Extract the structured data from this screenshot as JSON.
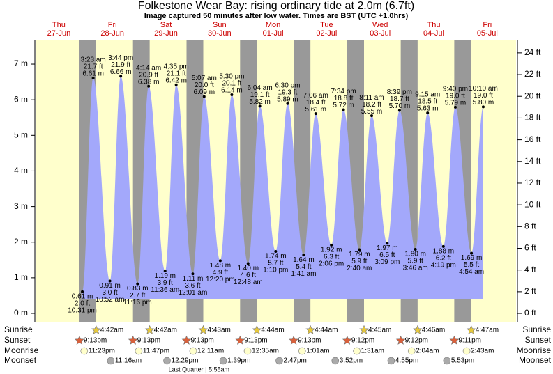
{
  "chart_data": {
    "type": "tide",
    "title": "Folkestone Wear Bay: rising  ordinary tide at 2.0m (6.7ft)",
    "subtitle": "Image captured 50 minutes after low water. Times are BST (UTC +1.0hrs)",
    "ylim": [
      -0.254,
      7.685
    ],
    "yticks": [
      {
        "value": 0,
        "label": "0 m"
      },
      {
        "value": 1,
        "label": "1 m"
      },
      {
        "value": 2,
        "label": "2 m"
      },
      {
        "value": 3,
        "label": "3 m"
      },
      {
        "value": 4,
        "label": "4 m"
      },
      {
        "value": 5,
        "label": "5 m"
      },
      {
        "value": 6,
        "label": "6 m"
      },
      {
        "value": 7,
        "label": "7 m"
      }
    ],
    "y2lim": [
      -0.83,
      25.21
    ],
    "y2ticks": [
      {
        "value": 0,
        "label": "0 ft"
      },
      {
        "value": 2,
        "label": "2 ft"
      },
      {
        "value": 4,
        "label": "4 ft"
      },
      {
        "value": 6,
        "label": "6 ft"
      },
      {
        "value": 8,
        "label": "8 ft"
      },
      {
        "value": 10,
        "label": "10 ft"
      },
      {
        "value": 12,
        "label": "12 ft"
      },
      {
        "value": 14,
        "label": "14 ft"
      },
      {
        "value": 16,
        "label": "16 ft"
      },
      {
        "value": 18,
        "label": "18 ft"
      },
      {
        "value": 20,
        "label": "20 ft"
      },
      {
        "value": 22,
        "label": "22 ft"
      },
      {
        "value": 24,
        "label": "24 ft"
      }
    ],
    "color": "#a3a8fb",
    "night_color": "#999999",
    "day_color": "#ffffcc",
    "row_labels": [
      "Sunrise",
      "Sunset",
      "Moonrise",
      "Moonset"
    ],
    "days": [
      {
        "weekday": "Thu",
        "date": "27-Jun",
        "tides": [
          {
            "time": "10:31 pm",
            "height": 0.61,
            "height_label": "0.61 m",
            "feet_label": "2.0 ft"
          }
        ],
        "sunset": "9:13pm",
        "moonrise": "11:23pm"
      },
      {
        "weekday": "Fri",
        "date": "28-Jun",
        "tides": [
          {
            "time": "3:23 am",
            "height": 6.61,
            "height_label": "6.61 m",
            "feet_label": "21.7 ft"
          },
          {
            "time": "10:52 am",
            "height": 0.91,
            "height_label": "0.91 m",
            "feet_label": "3.0 ft"
          },
          {
            "time": "3:44 pm",
            "height": 6.66,
            "height_label": "6.66 m",
            "feet_label": "21.9 ft"
          },
          {
            "time": "11:16 pm",
            "height": 0.83,
            "height_label": "0.83 m",
            "feet_label": "2.7 ft"
          }
        ],
        "sunrise": "4:42am",
        "sunset": "9:13pm",
        "moonrise": "11:47pm",
        "moonset": "11:16am"
      },
      {
        "weekday": "Sat",
        "date": "29-Jun",
        "tides": [
          {
            "time": "4:14 am",
            "height": 6.38,
            "height_label": "6.38 m",
            "feet_label": "20.9 ft"
          },
          {
            "time": "11:36 am",
            "height": 1.19,
            "height_label": "1.19 m",
            "feet_label": "3.9 ft"
          },
          {
            "time": "4:35 pm",
            "height": 6.42,
            "height_label": "6.42 m",
            "feet_label": "21.1 ft"
          }
        ],
        "sunrise": "4:42am",
        "sunset": "9:13pm",
        "moonset": "12:29pm"
      },
      {
        "weekday": "Sun",
        "date": "30-Jun",
        "tides": [
          {
            "time": "12:01 am",
            "height": 1.11,
            "height_label": "1.11 m",
            "feet_label": "3.6 ft"
          },
          {
            "time": "5:07 am",
            "height": 6.09,
            "height_label": "6.09 m",
            "feet_label": "20.0 ft"
          },
          {
            "time": "12:20 pm",
            "height": 1.48,
            "height_label": "1.48 m",
            "feet_label": "4.9 ft"
          },
          {
            "time": "5:30 pm",
            "height": 6.14,
            "height_label": "6.14 m",
            "feet_label": "20.1 ft"
          }
        ],
        "sunrise": "4:43am",
        "sunset": "9:13pm",
        "moonrise": "12:11am",
        "moonset": "1:39pm",
        "moon_phase": "Last Quarter | 5:55am"
      },
      {
        "weekday": "Mon",
        "date": "01-Jul",
        "tides": [
          {
            "time": "12:48 am",
            "height": 1.4,
            "height_label": "1.40 m",
            "feet_label": "4.6 ft"
          },
          {
            "time": "6:04 am",
            "height": 5.82,
            "height_label": "5.82 m",
            "feet_label": "19.1 ft"
          },
          {
            "time": "1:10 pm",
            "height": 1.74,
            "height_label": "1.74 m",
            "feet_label": "5.7 ft"
          },
          {
            "time": "6:30 pm",
            "height": 5.89,
            "height_label": "5.89 m",
            "feet_label": "19.3 ft"
          }
        ],
        "sunrise": "4:44am",
        "sunset": "9:13pm",
        "moonrise": "12:35am",
        "moonset": "2:47pm"
      },
      {
        "weekday": "Tue",
        "date": "02-Jul",
        "tides": [
          {
            "time": "1:41 am",
            "height": 1.64,
            "height_label": "1.64 m",
            "feet_label": "5.4 ft"
          },
          {
            "time": "7:06 am",
            "height": 5.61,
            "height_label": "5.61 m",
            "feet_label": "18.4 ft"
          },
          {
            "time": "2:06 pm",
            "height": 1.92,
            "height_label": "1.92 m",
            "feet_label": "6.3 ft"
          },
          {
            "time": "7:34 pm",
            "height": 5.72,
            "height_label": "5.72 m",
            "feet_label": "18.8 ft"
          }
        ],
        "sunrise": "4:44am",
        "sunset": "9:12pm",
        "moonrise": "1:01am",
        "moonset": "3:52pm"
      },
      {
        "weekday": "Wed",
        "date": "03-Jul",
        "tides": [
          {
            "time": "2:40 am",
            "height": 1.79,
            "height_label": "1.79 m",
            "feet_label": "5.9 ft"
          },
          {
            "time": "8:11 am",
            "height": 5.55,
            "height_label": "5.55 m",
            "feet_label": "18.2 ft"
          },
          {
            "time": "3:09 pm",
            "height": 1.97,
            "height_label": "1.97 m",
            "feet_label": "6.5 ft"
          },
          {
            "time": "8:39 pm",
            "height": 5.7,
            "height_label": "5.70 m",
            "feet_label": "18.7 ft"
          }
        ],
        "sunrise": "4:45am",
        "sunset": "9:12pm",
        "moonrise": "1:31am",
        "moonset": "4:55pm"
      },
      {
        "weekday": "Thu",
        "date": "04-Jul",
        "tides": [
          {
            "time": "3:46 am",
            "height": 1.8,
            "height_label": "1.80 m",
            "feet_label": "5.9 ft"
          },
          {
            "time": "9:15 am",
            "height": 5.63,
            "height_label": "5.63 m",
            "feet_label": "18.5 ft"
          },
          {
            "time": "4:19 pm",
            "height": 1.88,
            "height_label": "1.88 m",
            "feet_label": "6.2 ft"
          },
          {
            "time": "9:40 pm",
            "height": 5.79,
            "height_label": "5.79 m",
            "feet_label": "19.0 ft"
          }
        ],
        "sunrise": "4:46am",
        "sunset": "9:11pm",
        "moonrise": "2:04am",
        "moonset": "5:53pm"
      },
      {
        "weekday": "Fri",
        "date": "05-Jul",
        "tides": [
          {
            "time": "4:54 am",
            "height": 1.69,
            "height_label": "1.69 m",
            "feet_label": "5.5 ft"
          },
          {
            "time": "10:10 am",
            "height": 5.8,
            "height_label": "5.80 m",
            "feet_label": "19.0 ft"
          }
        ],
        "sunrise": "4:47am",
        "moonrise": "2:43am"
      }
    ]
  }
}
